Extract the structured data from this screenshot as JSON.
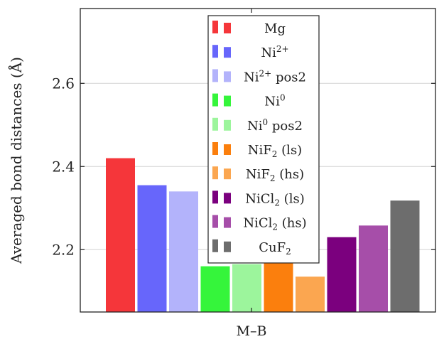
{
  "chart_data": {
    "type": "bar",
    "title": "",
    "xlabel": "M–B",
    "ylabel": "Averaged bond distances (Å)",
    "ylim": [
      2.05,
      2.78
    ],
    "yticks": [
      {
        "value": 2.2,
        "label": "2.2"
      },
      {
        "value": 2.4,
        "label": "2.4"
      },
      {
        "value": 2.6,
        "label": "2.6"
      }
    ],
    "grid": true,
    "legend_position": "top-center",
    "categories": [
      "M–B"
    ],
    "series": [
      {
        "key": "mg",
        "name": "Mg",
        "base": "Mg",
        "sub": "",
        "sup": "",
        "suffix": "",
        "color": "#f5363a",
        "values": [
          2.42
        ]
      },
      {
        "key": "ni2",
        "name": "Ni2+",
        "base": "Ni",
        "sub": "",
        "sup": "2+",
        "suffix": "",
        "color": "#6766fb",
        "values": [
          2.355
        ]
      },
      {
        "key": "ni2pos2",
        "name": "Ni2+ pos2",
        "base": "Ni",
        "sub": "",
        "sup": "2+",
        "suffix": " pos2",
        "color": "#b3b3fb",
        "values": [
          2.34
        ]
      },
      {
        "key": "ni0",
        "name": "Ni0",
        "base": "Ni",
        "sub": "",
        "sup": "0",
        "suffix": "",
        "color": "#35f53b",
        "values": [
          2.16
        ]
      },
      {
        "key": "ni0pos2",
        "name": "Ni0 pos2",
        "base": "Ni",
        "sub": "",
        "sup": "0",
        "suffix": " pos2",
        "color": "#9cf59c",
        "values": [
          2.165
        ]
      },
      {
        "key": "nif2ls",
        "name": "NiF2 (ls)",
        "base": "NiF",
        "sub": "2",
        "sup": "",
        "suffix": " (ls)",
        "color": "#fb7f0d",
        "values": [
          2.168
        ]
      },
      {
        "key": "nif2hs",
        "name": "NiF2 (hs)",
        "base": "NiF",
        "sub": "2",
        "sup": "",
        "suffix": " (hs)",
        "color": "#fba650",
        "values": [
          2.135
        ]
      },
      {
        "key": "nicl2ls",
        "name": "NiCl2 (ls)",
        "base": "NiCl",
        "sub": "2",
        "sup": "",
        "suffix": " (ls)",
        "color": "#7b007e",
        "values": [
          2.23
        ]
      },
      {
        "key": "nicl2hs",
        "name": "NiCl2 (hs)",
        "base": "NiCl",
        "sub": "2",
        "sup": "",
        "suffix": " (hs)",
        "color": "#a64ea9",
        "values": [
          2.258
        ]
      },
      {
        "key": "cuf2",
        "name": "CuF2",
        "base": "CuF",
        "sub": "2",
        "sup": "",
        "suffix": "",
        "color": "#6d6d6d",
        "values": [
          2.318
        ]
      }
    ]
  }
}
